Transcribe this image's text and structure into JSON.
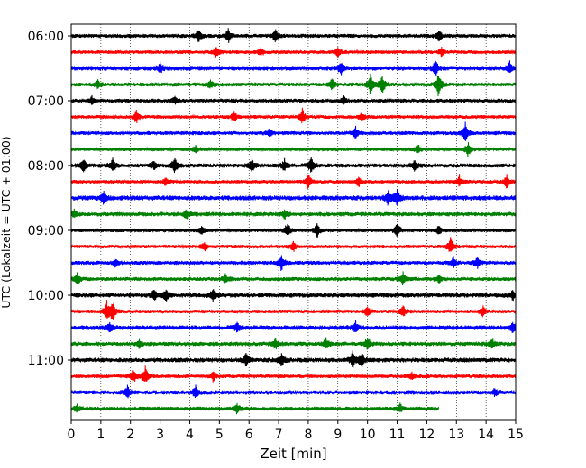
{
  "chart_data": {
    "type": "line",
    "title": "",
    "xlabel": "Zeit  [min]",
    "ylabel": "UTC (Lokalzeit = UTC + 01:00)",
    "xlim": [
      0,
      15
    ],
    "x_ticks": [
      "0",
      "1",
      "2",
      "3",
      "4",
      "5",
      "6",
      "7",
      "8",
      "9",
      "10",
      "11",
      "12",
      "13",
      "14",
      "15"
    ],
    "y_ticks": [
      {
        "label": "06:00",
        "row": 0
      },
      {
        "label": "07:00",
        "row": 4
      },
      {
        "label": "08:00",
        "row": 8
      },
      {
        "label": "09:00",
        "row": 12
      },
      {
        "label": "10:00",
        "row": 16
      },
      {
        "label": "11:00",
        "row": 20
      }
    ],
    "row_minutes": 15,
    "grid": "vertical dotted lines at each minute",
    "colors": [
      "#000000",
      "#ff0000",
      "#0000ff",
      "#008000"
    ],
    "traces": [
      {
        "amp": 2.2,
        "events": [
          {
            "t": 4.3,
            "a": 8
          },
          {
            "t": 5.3,
            "a": 9
          },
          {
            "t": 6.9,
            "a": 8
          },
          {
            "t": 12.4,
            "a": 7
          }
        ]
      },
      {
        "amp": 2.0,
        "events": [
          {
            "t": 4.9,
            "a": 6
          },
          {
            "t": 6.4,
            "a": 5
          },
          {
            "t": 9.0,
            "a": 6
          },
          {
            "t": 12.5,
            "a": 5
          }
        ]
      },
      {
        "amp": 2.6,
        "events": [
          {
            "t": 3.0,
            "a": 6
          },
          {
            "t": 9.1,
            "a": 7
          },
          {
            "t": 12.3,
            "a": 9
          },
          {
            "t": 14.8,
            "a": 8
          }
        ]
      },
      {
        "amp": 2.2,
        "events": [
          {
            "t": 0.9,
            "a": 5
          },
          {
            "t": 4.7,
            "a": 5
          },
          {
            "t": 8.8,
            "a": 8
          },
          {
            "t": 10.1,
            "a": 12
          },
          {
            "t": 10.5,
            "a": 12
          },
          {
            "t": 12.4,
            "a": 14
          }
        ]
      },
      {
        "amp": 2.2,
        "events": [
          {
            "t": 0.7,
            "a": 5
          },
          {
            "t": 3.5,
            "a": 5
          },
          {
            "t": 9.2,
            "a": 5
          }
        ]
      },
      {
        "amp": 2.0,
        "events": [
          {
            "t": 2.2,
            "a": 8
          },
          {
            "t": 5.5,
            "a": 6
          },
          {
            "t": 7.8,
            "a": 9
          },
          {
            "t": 9.8,
            "a": 5
          }
        ]
      },
      {
        "amp": 2.2,
        "events": [
          {
            "t": 6.7,
            "a": 5
          },
          {
            "t": 9.6,
            "a": 7
          },
          {
            "t": 13.3,
            "a": 12
          }
        ]
      },
      {
        "amp": 1.9,
        "events": [
          {
            "t": 4.2,
            "a": 4
          },
          {
            "t": 11.7,
            "a": 5
          },
          {
            "t": 13.4,
            "a": 9
          }
        ]
      },
      {
        "amp": 2.3,
        "events": [
          {
            "t": 0.4,
            "a": 9
          },
          {
            "t": 1.4,
            "a": 8
          },
          {
            "t": 2.8,
            "a": 5
          },
          {
            "t": 3.5,
            "a": 10
          },
          {
            "t": 6.1,
            "a": 8
          },
          {
            "t": 7.2,
            "a": 7
          },
          {
            "t": 8.1,
            "a": 9
          },
          {
            "t": 11.6,
            "a": 6
          }
        ]
      },
      {
        "amp": 2.0,
        "events": [
          {
            "t": 3.2,
            "a": 5
          },
          {
            "t": 8.0,
            "a": 9
          },
          {
            "t": 9.7,
            "a": 6
          },
          {
            "t": 13.1,
            "a": 7
          },
          {
            "t": 14.7,
            "a": 8
          }
        ]
      },
      {
        "amp": 2.8,
        "events": [
          {
            "t": 1.1,
            "a": 7
          },
          {
            "t": 10.7,
            "a": 8
          },
          {
            "t": 11.0,
            "a": 10
          }
        ]
      },
      {
        "amp": 2.4,
        "events": [
          {
            "t": 0.1,
            "a": 5
          },
          {
            "t": 3.9,
            "a": 6
          },
          {
            "t": 7.2,
            "a": 5
          }
        ]
      },
      {
        "amp": 2.0,
        "events": [
          {
            "t": 4.4,
            "a": 5
          },
          {
            "t": 7.3,
            "a": 9
          },
          {
            "t": 8.3,
            "a": 8
          },
          {
            "t": 11.0,
            "a": 9
          },
          {
            "t": 12.4,
            "a": 5
          }
        ]
      },
      {
        "amp": 2.0,
        "events": [
          {
            "t": 4.5,
            "a": 6
          },
          {
            "t": 7.5,
            "a": 6
          },
          {
            "t": 12.8,
            "a": 11
          }
        ]
      },
      {
        "amp": 2.2,
        "events": [
          {
            "t": 1.5,
            "a": 5
          },
          {
            "t": 7.1,
            "a": 10
          },
          {
            "t": 12.9,
            "a": 6
          },
          {
            "t": 13.7,
            "a": 7
          }
        ]
      },
      {
        "amp": 2.2,
        "events": [
          {
            "t": 0.2,
            "a": 8
          },
          {
            "t": 5.2,
            "a": 6
          },
          {
            "t": 11.2,
            "a": 7
          },
          {
            "t": 12.4,
            "a": 5
          }
        ]
      },
      {
        "amp": 2.6,
        "events": [
          {
            "t": 2.8,
            "a": 7
          },
          {
            "t": 3.2,
            "a": 7
          },
          {
            "t": 4.8,
            "a": 7
          },
          {
            "t": 14.9,
            "a": 5
          }
        ]
      },
      {
        "amp": 2.0,
        "events": [
          {
            "t": 1.2,
            "a": 11
          },
          {
            "t": 1.4,
            "a": 12
          },
          {
            "t": 10.0,
            "a": 7
          },
          {
            "t": 11.2,
            "a": 7
          },
          {
            "t": 13.9,
            "a": 6
          }
        ]
      },
      {
        "amp": 2.6,
        "events": [
          {
            "t": 1.3,
            "a": 6
          },
          {
            "t": 5.6,
            "a": 5
          },
          {
            "t": 9.6,
            "a": 6
          },
          {
            "t": 14.9,
            "a": 7
          }
        ]
      },
      {
        "amp": 2.4,
        "events": [
          {
            "t": 2.3,
            "a": 5
          },
          {
            "t": 6.9,
            "a": 6
          },
          {
            "t": 8.6,
            "a": 6
          },
          {
            "t": 10.0,
            "a": 9
          },
          {
            "t": 14.2,
            "a": 6
          }
        ]
      },
      {
        "amp": 2.6,
        "events": [
          {
            "t": 5.9,
            "a": 8
          },
          {
            "t": 7.1,
            "a": 9
          },
          {
            "t": 9.5,
            "a": 9
          },
          {
            "t": 9.8,
            "a": 8
          }
        ]
      },
      {
        "amp": 2.0,
        "events": [
          {
            "t": 2.1,
            "a": 9
          },
          {
            "t": 2.5,
            "a": 11
          },
          {
            "t": 4.8,
            "a": 6
          },
          {
            "t": 11.5,
            "a": 5
          }
        ]
      },
      {
        "amp": 2.4,
        "events": [
          {
            "t": 1.9,
            "a": 7
          },
          {
            "t": 4.2,
            "a": 7
          },
          {
            "t": 14.3,
            "a": 5
          }
        ]
      },
      {
        "amp": 2.2,
        "t_end": 12.4,
        "events": [
          {
            "t": 0.2,
            "a": 5
          },
          {
            "t": 5.6,
            "a": 6
          },
          {
            "t": 11.1,
            "a": 5
          }
        ]
      }
    ]
  }
}
